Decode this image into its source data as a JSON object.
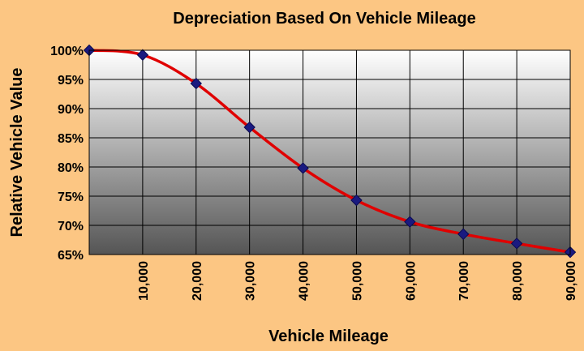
{
  "chart_data": {
    "type": "line",
    "title": "Depreciation Based On Vehicle Mileage",
    "xlabel": "Vehicle Mileage",
    "ylabel": "Relative Vehicle Value",
    "x": [
      0,
      10000,
      20000,
      30000,
      40000,
      50000,
      60000,
      70000,
      80000,
      90000
    ],
    "series": [
      {
        "values": [
          100,
          99.2,
          94.3,
          86.8,
          79.8,
          74.3,
          70.6,
          68.5,
          66.9,
          65.4
        ]
      }
    ],
    "xlim": [
      0,
      90000
    ],
    "ylim": [
      65,
      100
    ],
    "x_ticks": [
      10000,
      20000,
      30000,
      40000,
      50000,
      60000,
      70000,
      80000,
      90000
    ],
    "x_tick_labels": [
      "10,000",
      "20,000",
      "30,000",
      "40,000",
      "50,000",
      "60,000",
      "70,000",
      "80,000",
      "90,000"
    ],
    "y_ticks": [
      65,
      70,
      75,
      80,
      85,
      90,
      95,
      100
    ],
    "y_tick_labels": [
      "65%",
      "70%",
      "75%",
      "80%",
      "85%",
      "90%",
      "95%",
      "100%"
    ],
    "grid": true,
    "legend": "none",
    "colors": {
      "background": "#fcc683",
      "plot_top": "#ffffff",
      "plot_bottom": "#555555",
      "line": "#e00000",
      "marker": "#1a1a80",
      "grid": "#000000",
      "text": "#000000"
    }
  }
}
